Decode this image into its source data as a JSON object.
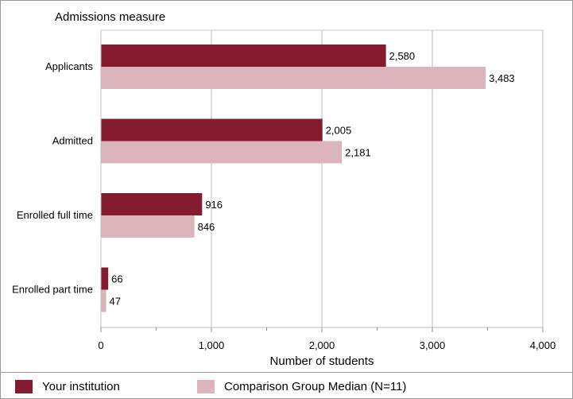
{
  "chart_data": {
    "type": "bar",
    "orientation": "horizontal",
    "title": "Admissions measure",
    "xlabel": "Number of students",
    "ylabel": "",
    "categories": [
      "Applicants",
      "Admitted",
      "Enrolled full time",
      "Enrolled part time"
    ],
    "series": [
      {
        "name": "Your institution",
        "values": [
          2580,
          2005,
          916,
          66
        ],
        "labels": [
          "2,580",
          "2,005",
          "916",
          "66"
        ],
        "color": "#851b2e"
      },
      {
        "name": "Comparison Group Median (N=11)",
        "values": [
          3483,
          2181,
          846,
          47
        ],
        "labels": [
          "3,483",
          "2,181",
          "846",
          "47"
        ],
        "color": "#dcb4bc"
      }
    ],
    "xlim": [
      0,
      4000
    ],
    "xticks": [
      0,
      1000,
      2000,
      3000,
      4000
    ],
    "xtick_labels": [
      "0",
      "1,000",
      "2,000",
      "3,000",
      "4,000"
    ],
    "grid": true,
    "legend_position": "bottom"
  }
}
